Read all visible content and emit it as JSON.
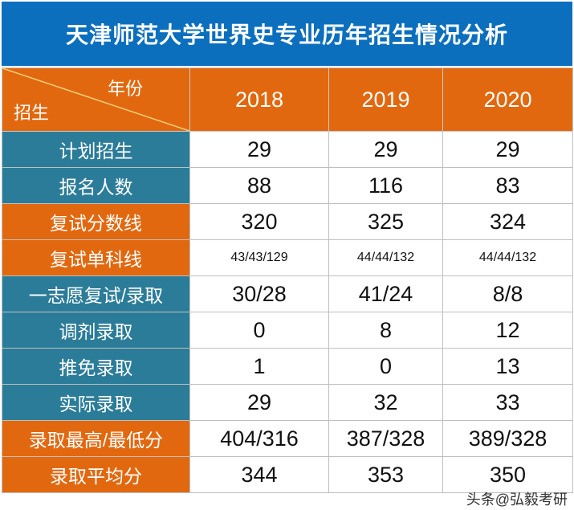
{
  "title": "天津师范大学世界史专业历年招生情况分析",
  "header": {
    "corner_top": "年份",
    "corner_bottom": "招生",
    "years": [
      "2018",
      "2019",
      "2020"
    ]
  },
  "rows": [
    {
      "label": "计划招生",
      "values": [
        "29",
        "29",
        "29"
      ],
      "color": "#2b7c99"
    },
    {
      "label": "报名人数",
      "values": [
        "88",
        "116",
        "83"
      ],
      "color": "#2b7c99"
    },
    {
      "label": "复试分数线",
      "values": [
        "320",
        "325",
        "324"
      ],
      "color": "#e2680f"
    },
    {
      "label": "复试单科线",
      "values": [
        "43/43/129",
        "44/44/132",
        "44/44/132"
      ],
      "color": "#e2680f"
    },
    {
      "label": "一志愿复试/录取",
      "values": [
        "30/28",
        "41/24",
        "8/8"
      ],
      "color": "#2b7c99"
    },
    {
      "label": "调剂录取",
      "values": [
        "0",
        "8",
        "12"
      ],
      "color": "#2b7c99"
    },
    {
      "label": "推免录取",
      "values": [
        "1",
        "0",
        "13"
      ],
      "color": "#2b7c99"
    },
    {
      "label": "实际录取",
      "values": [
        "29",
        "32",
        "33"
      ],
      "color": "#2b7c99"
    },
    {
      "label": "录取最高/最低分",
      "values": [
        "404/316",
        "387/328",
        "389/328"
      ],
      "color": "#e2680f"
    },
    {
      "label": "录取平均分",
      "values": [
        "344",
        "353",
        "350"
      ],
      "color": "#e2680f"
    }
  ],
  "watermark": "弘毅考研",
  "source_watermark": "头条@弘毅考研",
  "colors": {
    "title_bg": "#0b6fbe",
    "orange": "#e2680f",
    "teal": "#2b7c99"
  }
}
